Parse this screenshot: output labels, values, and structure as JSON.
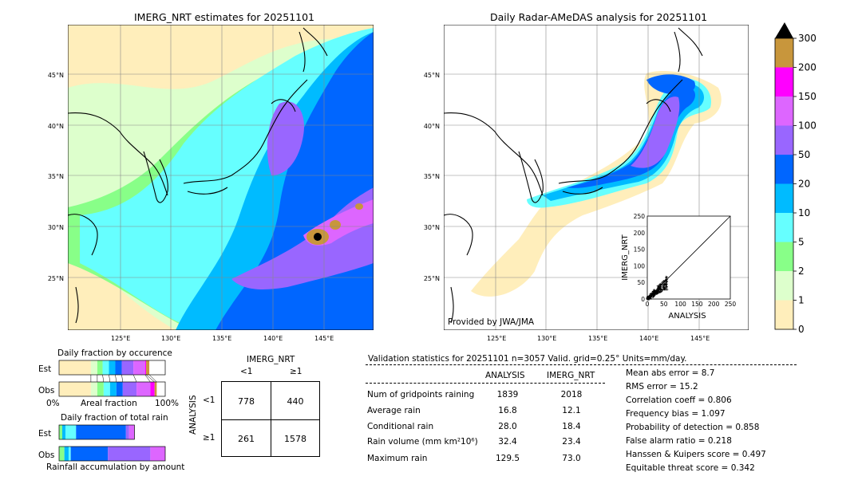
{
  "left_map": {
    "title": "IMERG_NRT estimates for 20251101",
    "lat_labels": [
      "45°N",
      "40°N",
      "35°N",
      "30°N",
      "25°N"
    ],
    "lon_labels": [
      "125°E",
      "130°E",
      "135°E",
      "140°E",
      "145°E"
    ]
  },
  "right_map": {
    "title": "Daily Radar-AMeDAS analysis for 20251101",
    "lat_labels": [
      "45°N",
      "40°N",
      "35°N",
      "30°N",
      "25°N"
    ],
    "lon_labels": [
      "125°E",
      "130°E",
      "135°E",
      "140°E",
      "145°E"
    ],
    "credit": "Provided by JWA/JMA"
  },
  "colorbar": {
    "ticks": [
      "300",
      "200",
      "150",
      "100",
      "50",
      "20",
      "10",
      "5",
      "2",
      "1",
      "0"
    ],
    "colors": [
      "#c8963c",
      "#ff00ff",
      "#dd66ff",
      "#9966ff",
      "#0066ff",
      "#00bbff",
      "#66ffff",
      "#88ff88",
      "#ddffcc",
      "#ffeebb"
    ]
  },
  "scatter": {
    "xlabel": "ANALYSIS",
    "ylabel": "IMERG_NRT",
    "ticks": [
      "0",
      "50",
      "100",
      "150",
      "200",
      "250"
    ]
  },
  "occurrence": {
    "title": "Daily fraction by occurence",
    "rows": [
      "Est",
      "Obs"
    ],
    "axis_left": "0%",
    "axis_mid": "Areal fraction",
    "axis_right": "100%"
  },
  "total_rain": {
    "title": "Daily fraction of total rain",
    "rows": [
      "Est",
      "Obs"
    ],
    "footer": "Rainfall accumulation by amount"
  },
  "contingency": {
    "col_header": "IMERG_NRT",
    "row_header": "ANALYSIS",
    "col_labels": [
      "<1",
      "≥1"
    ],
    "row_labels": [
      "<1",
      "≥1"
    ],
    "cells": [
      [
        "778",
        "440"
      ],
      [
        "261",
        "1578"
      ]
    ]
  },
  "validation": {
    "header": "Validation statistics for 20251101  n=3057 Valid. grid=0.25° Units=mm/day.",
    "col_analysis": "ANALYSIS",
    "col_imerg": "IMERG_NRT",
    "rows": [
      {
        "label": "Num of gridpoints raining",
        "analysis": "1839",
        "imerg": "2018"
      },
      {
        "label": "Average rain",
        "analysis": "16.8",
        "imerg": "12.1"
      },
      {
        "label": "Conditional rain",
        "analysis": "28.0",
        "imerg": "18.4"
      },
      {
        "label": "Rain volume (mm km²10⁶)",
        "analysis": "32.4",
        "imerg": "23.4"
      },
      {
        "label": "Maximum rain",
        "analysis": "129.5",
        "imerg": "73.0"
      }
    ],
    "scores": [
      "Mean abs error =    8.7",
      "RMS error =   15.2",
      "Correlation coeff =  0.806",
      "Frequency bias =  1.097",
      "Probability of detection =  0.858",
      "False alarm ratio =  0.218",
      "Hanssen & Kuipers score =  0.497",
      "Equitable threat score =  0.342"
    ]
  },
  "chart_data": {
    "type": "table",
    "contingency_table": {
      "rows": "ANALYSIS",
      "cols": "IMERG_NRT",
      "categories": [
        "<1",
        "≥1"
      ],
      "values": [
        [
          778,
          440
        ],
        [
          261,
          1578
        ]
      ]
    },
    "stats": {
      "n": 3057,
      "num_gridpoints_raining": {
        "analysis": 1839,
        "imerg": 2018
      },
      "average_rain": {
        "analysis": 16.8,
        "imerg": 12.1
      },
      "conditional_rain": {
        "analysis": 28.0,
        "imerg": 18.4
      },
      "rain_volume": {
        "analysis": 32.4,
        "imerg": 23.4
      },
      "maximum_rain": {
        "analysis": 129.5,
        "imerg": 73.0
      },
      "mean_abs_error": 8.7,
      "rms_error": 15.2,
      "correlation_coeff": 0.806,
      "frequency_bias": 1.097,
      "probability_of_detection": 0.858,
      "false_alarm_ratio": 0.218,
      "hanssen_kuipers_score": 0.497,
      "equitable_threat_score": 0.342
    },
    "occurrence_fractions": {
      "Est": [
        0.3,
        0.06,
        0.05,
        0.06,
        0.06,
        0.06,
        0.11,
        0.11,
        0.01,
        0.03
      ],
      "Obs": [
        0.3,
        0.06,
        0.06,
        0.06,
        0.06,
        0.06,
        0.13,
        0.13,
        0.04,
        0.02
      ]
    },
    "total_rain_fractions": {
      "Est": [
        0.03,
        0.03,
        0.1,
        0.47,
        0.03,
        0.05
      ],
      "Obs": [
        0.05,
        0.04,
        0.02,
        0.35,
        0.4,
        0.14
      ]
    },
    "scatter_axes": {
      "xlim": [
        0,
        250
      ],
      "ylim": [
        0,
        250
      ],
      "xlabel": "ANALYSIS",
      "ylabel": "IMERG_NRT"
    }
  }
}
